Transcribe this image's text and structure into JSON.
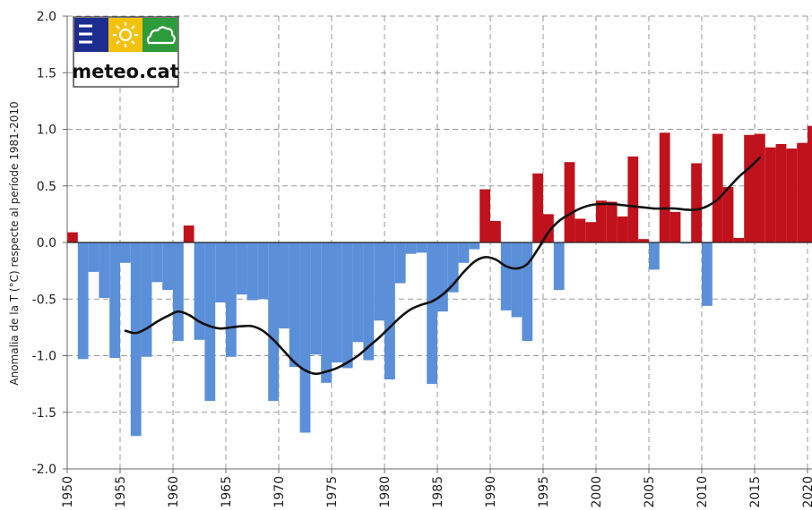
{
  "chart_data": {
    "type": "bar",
    "ylabel": "Anomalia de la T (°C) respecte al període 1981-2010",
    "xlabel": "",
    "ylim": [
      -2.0,
      2.0
    ],
    "xlim": [
      1950,
      2020
    ],
    "y_ticks": [
      "2.0",
      "1.5",
      "1.0",
      "0.5",
      "0.0",
      "-0.5",
      "-1.0",
      "-1.5",
      "-2.0"
    ],
    "y_tick_values": [
      2.0,
      1.5,
      1.0,
      0.5,
      0.0,
      -0.5,
      -1.0,
      -1.5,
      -2.0
    ],
    "x_ticks": [
      "1950",
      "1955",
      "1960",
      "1965",
      "1970",
      "1975",
      "1980",
      "1985",
      "1990",
      "1995",
      "2000",
      "2005",
      "2010",
      "2015",
      "2020"
    ],
    "x_tick_values": [
      1950,
      1955,
      1960,
      1965,
      1970,
      1975,
      1980,
      1985,
      1990,
      1995,
      2000,
      2005,
      2010,
      2015,
      2020
    ],
    "grid": true,
    "positive_color": "#c0121c",
    "negative_color": "#5b8fd8",
    "series": [
      {
        "type": "bar",
        "x": [
          1950,
          1951,
          1952,
          1953,
          1954,
          1955,
          1956,
          1957,
          1958,
          1959,
          1960,
          1961,
          1962,
          1963,
          1964,
          1965,
          1966,
          1967,
          1968,
          1969,
          1970,
          1971,
          1972,
          1973,
          1974,
          1975,
          1976,
          1977,
          1978,
          1979,
          1980,
          1981,
          1982,
          1983,
          1984,
          1985,
          1986,
          1987,
          1988,
          1989,
          1990,
          1991,
          1992,
          1993,
          1994,
          1995,
          1996,
          1997,
          1998,
          1999,
          2000,
          2001,
          2002,
          2003,
          2004,
          2005,
          2006,
          2007,
          2008,
          2009,
          2010,
          2011,
          2012,
          2013,
          2014,
          2015,
          2016,
          2017,
          2018,
          2019,
          2020
        ],
        "values": [
          0.09,
          -1.03,
          -0.26,
          -0.49,
          -1.02,
          -0.18,
          -1.71,
          -1.01,
          -0.35,
          -0.42,
          -0.87,
          0.15,
          -0.86,
          -1.4,
          -0.53,
          -1.01,
          -0.46,
          -0.51,
          -0.5,
          -1.4,
          -0.76,
          -1.1,
          -1.68,
          -0.99,
          -1.24,
          -1.06,
          -1.11,
          -0.88,
          -1.04,
          -0.69,
          -1.21,
          -0.36,
          -0.1,
          -0.09,
          -1.25,
          -0.61,
          -0.44,
          -0.18,
          -0.06,
          0.47,
          0.19,
          -0.6,
          -0.66,
          -0.87,
          0.61,
          0.25,
          -0.42,
          0.71,
          0.21,
          0.18,
          0.37,
          0.36,
          0.23,
          0.76,
          0.03,
          -0.24,
          0.97,
          0.27,
          -0.01,
          0.7,
          -0.56,
          0.96,
          0.49,
          0.04,
          0.95,
          0.96,
          0.84,
          0.87,
          0.83,
          0.88,
          1.03
        ]
      },
      {
        "type": "line",
        "x": [
          1955,
          1956,
          1957,
          1958,
          1959,
          1960,
          1961,
          1962,
          1963,
          1964,
          1965,
          1966,
          1967,
          1968,
          1969,
          1970,
          1971,
          1972,
          1973,
          1974,
          1975,
          1976,
          1977,
          1978,
          1979,
          1980,
          1981,
          1982,
          1983,
          1984,
          1985,
          1986,
          1987,
          1988,
          1989,
          1990,
          1991,
          1992,
          1993,
          1994,
          1995,
          1996,
          1997,
          1998,
          1999,
          2000,
          2001,
          2002,
          2003,
          2004,
          2005,
          2006,
          2007,
          2008,
          2009,
          2010,
          2011,
          2012,
          2013,
          2014,
          2015
        ],
        "values": [
          -0.78,
          -0.8,
          -0.76,
          -0.7,
          -0.65,
          -0.61,
          -0.64,
          -0.7,
          -0.74,
          -0.76,
          -0.75,
          -0.74,
          -0.74,
          -0.78,
          -0.86,
          -0.96,
          -1.06,
          -1.13,
          -1.16,
          -1.14,
          -1.11,
          -1.06,
          -1.0,
          -0.92,
          -0.84,
          -0.75,
          -0.66,
          -0.59,
          -0.55,
          -0.52,
          -0.46,
          -0.37,
          -0.26,
          -0.17,
          -0.13,
          -0.15,
          -0.21,
          -0.23,
          -0.19,
          -0.06,
          0.09,
          0.19,
          0.25,
          0.3,
          0.33,
          0.34,
          0.34,
          0.33,
          0.32,
          0.31,
          0.3,
          0.3,
          0.3,
          0.29,
          0.29,
          0.32,
          0.38,
          0.48,
          0.58,
          0.66,
          0.75
        ]
      }
    ]
  },
  "logo": {
    "text": "meteo.cat",
    "colors": [
      "#1d2c8f",
      "#f4c20d",
      "#2e9b3a"
    ],
    "icons": [
      "menu-lines-icon",
      "sun-icon",
      "cloud-icon"
    ]
  }
}
